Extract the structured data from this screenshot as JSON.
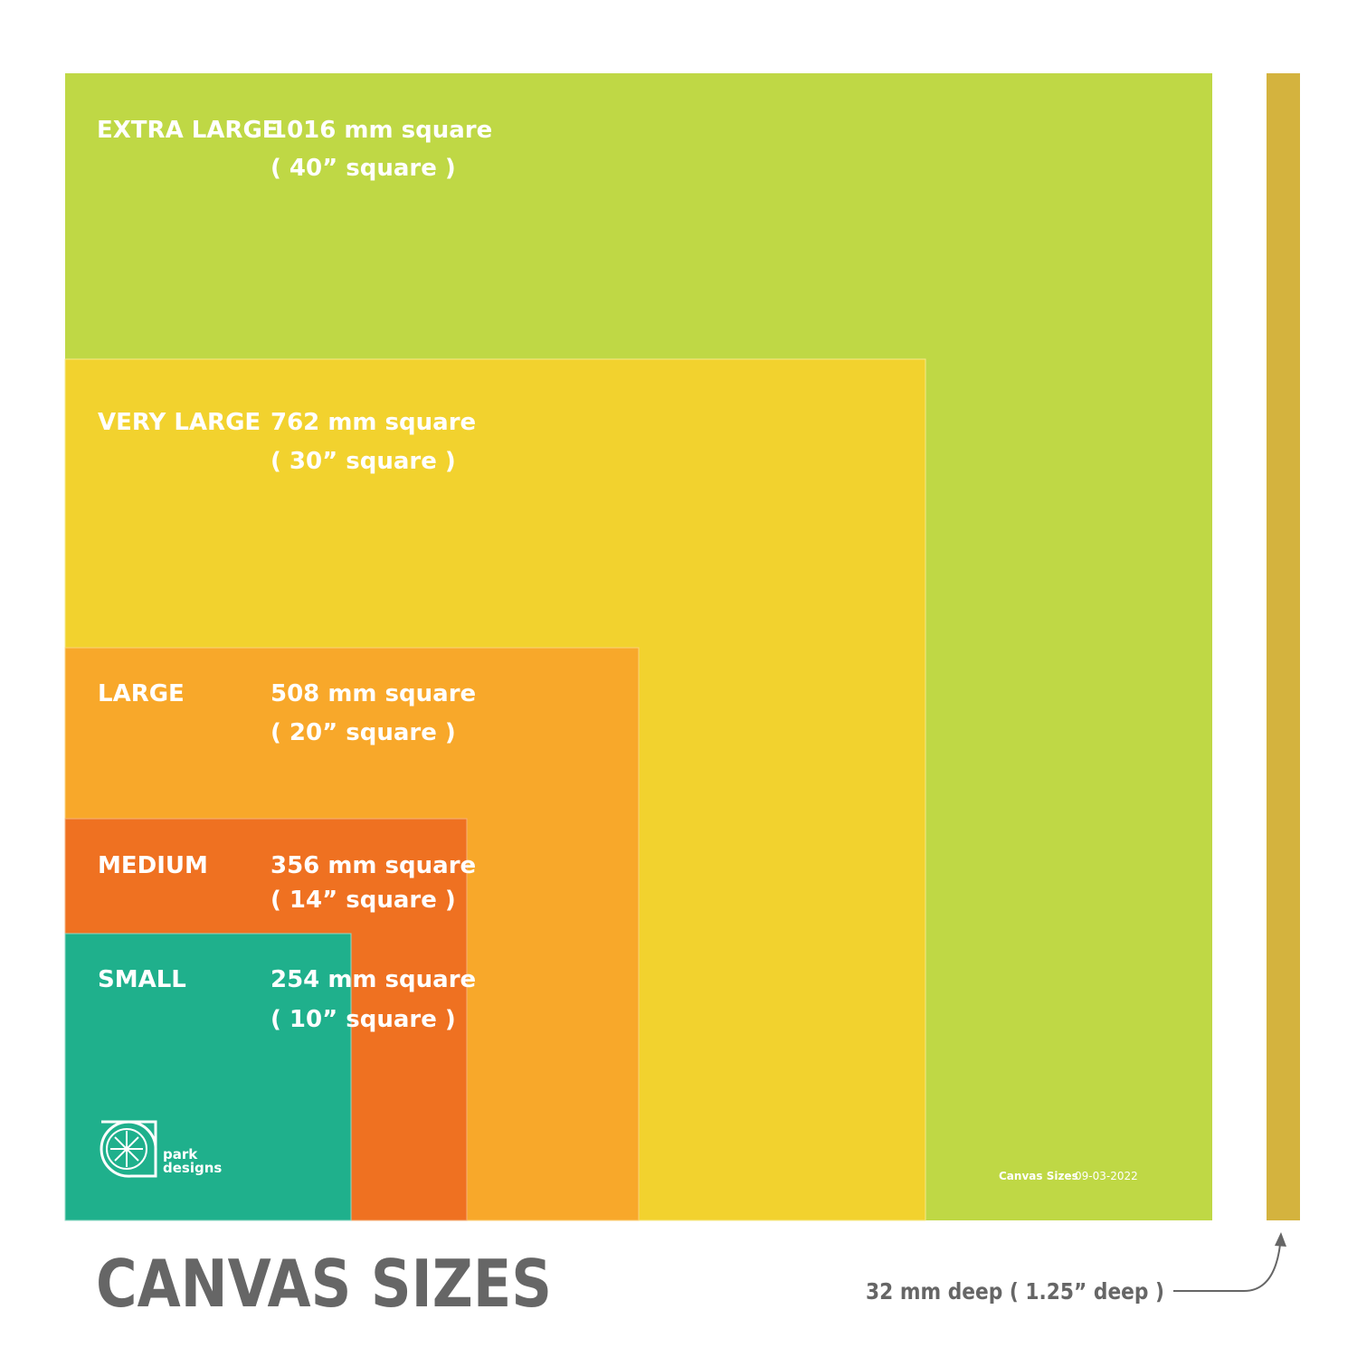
{
  "title": "CANVAS SIZES",
  "sizes": [
    {
      "name": "EXTRA LARGE",
      "metric": "1016 mm square",
      "imperial": "( 40” square )"
    },
    {
      "name": "VERY LARGE",
      "metric": "762 mm square",
      "imperial": "( 30” square )"
    },
    {
      "name": "LARGE",
      "metric": "508 mm square",
      "imperial": "( 20” square )"
    },
    {
      "name": "MEDIUM",
      "metric": "356 mm square",
      "imperial": "( 14” square )"
    },
    {
      "name": "SMALL",
      "metric": "254 mm square",
      "imperial": "( 10” square )"
    }
  ],
  "depth": "32 mm deep ( 1.25” deep )",
  "footer": {
    "label": "Canvas Sizes",
    "date": "09-03-2022"
  },
  "logo": {
    "line1": "park",
    "line2": "designs"
  }
}
